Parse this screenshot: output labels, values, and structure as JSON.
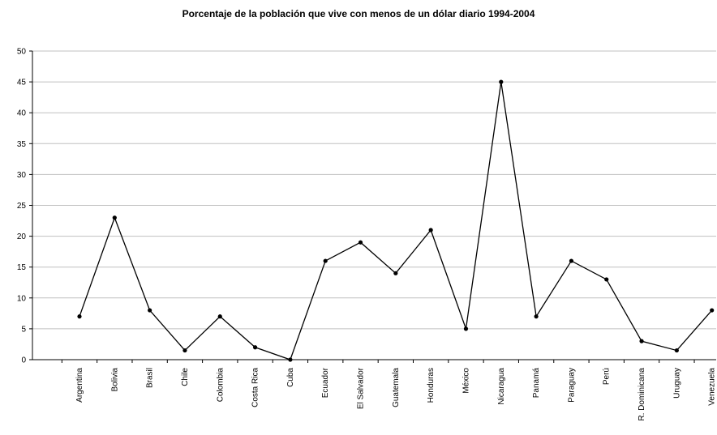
{
  "chart_data": {
    "type": "line",
    "title": "Porcentaje de la población que vive con menos de un dólar diario 1994-2004",
    "xlabel": "",
    "ylabel": "",
    "ylim": [
      0,
      50
    ],
    "yticks": [
      0,
      5,
      10,
      15,
      20,
      25,
      30,
      35,
      40,
      45,
      50
    ],
    "grid": true,
    "legend": "none",
    "categories": [
      "Argentina",
      "Bolivia",
      "Brasil",
      "Chile",
      "Colombia",
      "Costa Rica",
      "Cuba",
      "Ecuador",
      "El Salvador",
      "Guatemala",
      "Honduras",
      "México",
      "Nicaragua",
      "Panamá",
      "Paraguay",
      "Perú",
      "R. Dominicana",
      "Uruguay",
      "Venezuela"
    ],
    "series": [
      {
        "values": [
          7,
          23,
          8,
          1.5,
          7,
          2,
          0,
          16,
          19,
          14,
          21,
          5,
          45,
          7,
          16,
          13,
          3,
          1.5,
          8
        ]
      }
    ],
    "colors": {
      "line": "#000000",
      "grid": "#c0c0c0",
      "axis": "#000000"
    }
  }
}
